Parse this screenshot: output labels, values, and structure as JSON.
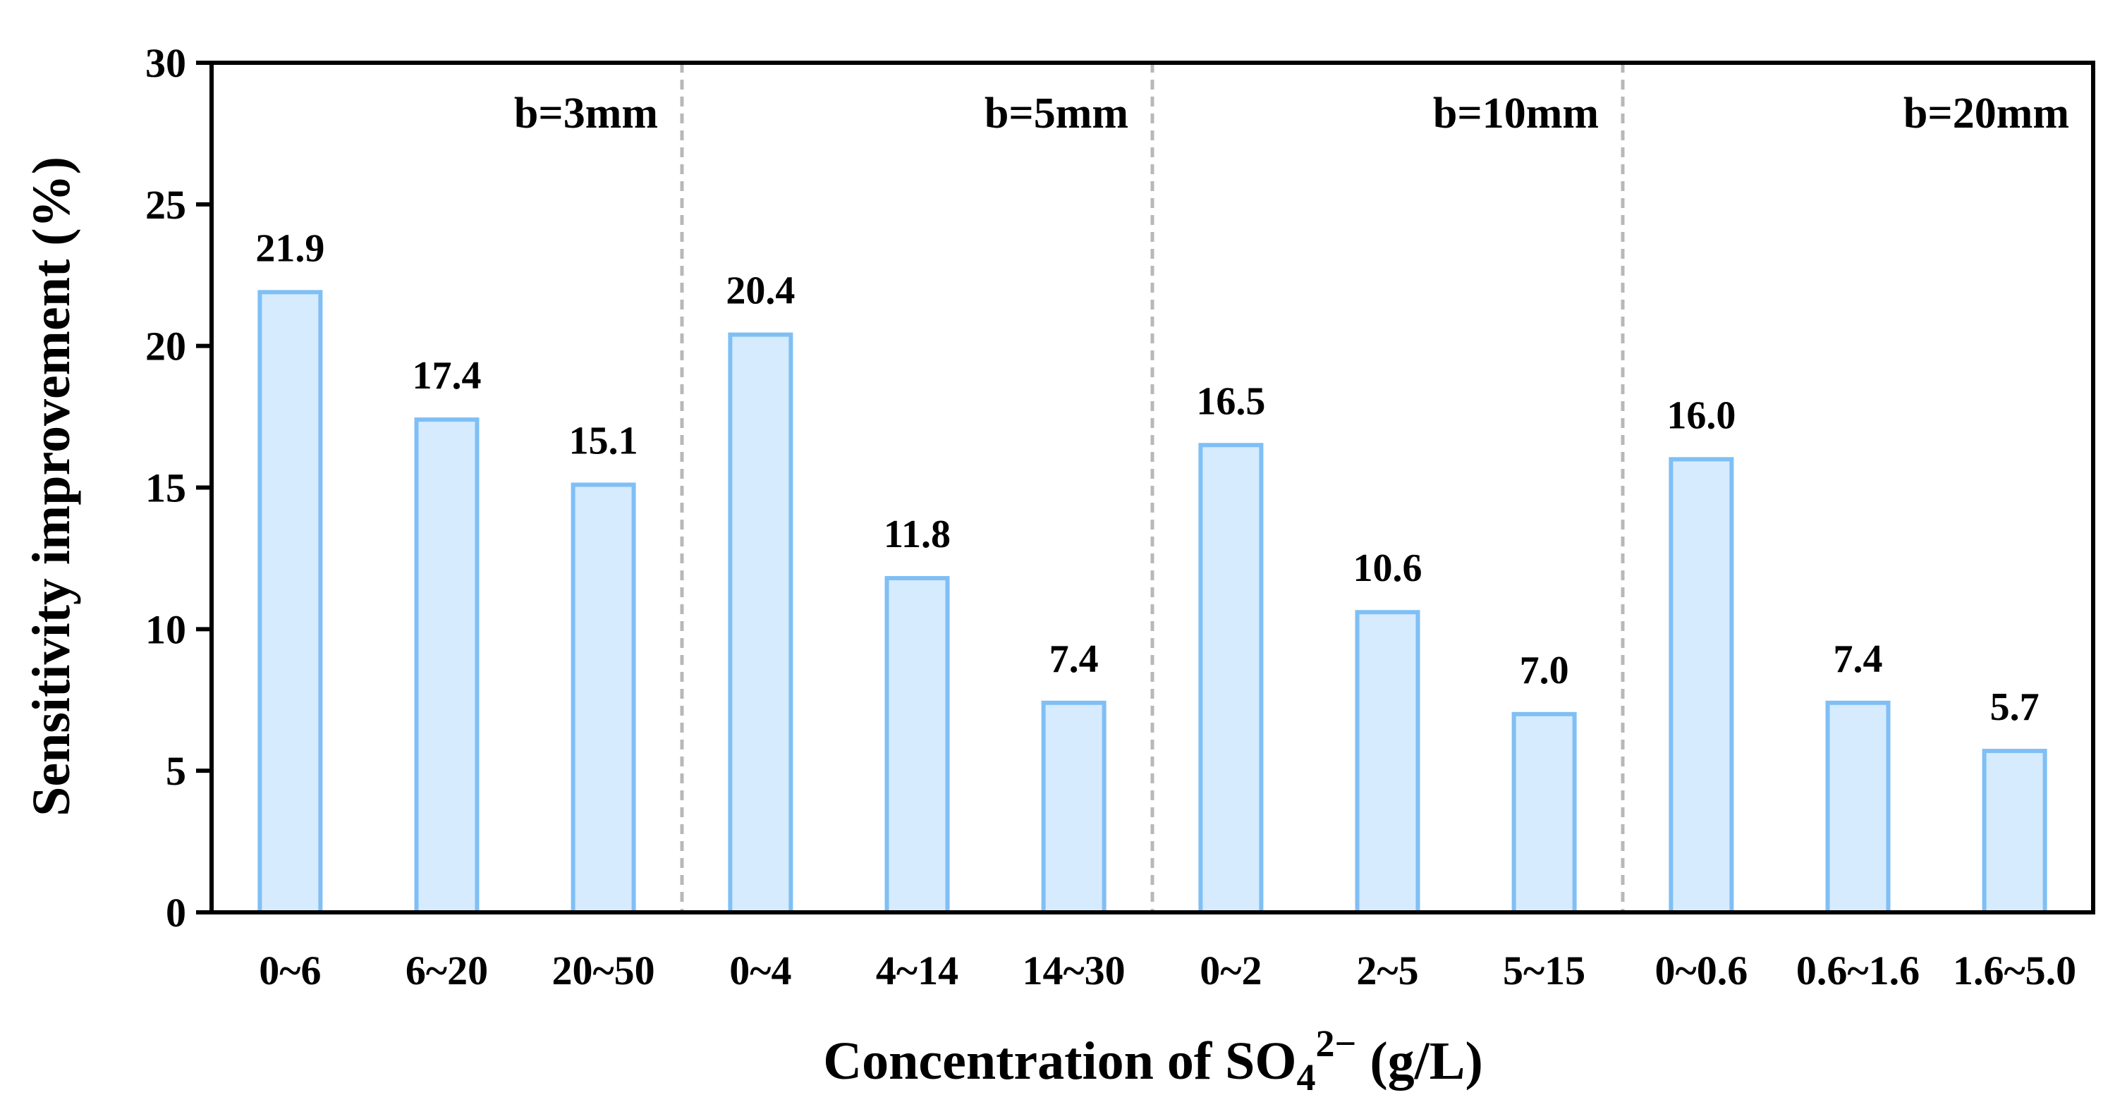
{
  "chart_data": {
    "type": "bar",
    "ylabel": "Sensitivity improvement (%)",
    "xlabel": {
      "prefix": "Concentration of SO",
      "subscript": "4",
      "superscript": "2−",
      "suffix": " (g/L)"
    },
    "ylim": [
      0,
      30
    ],
    "yticks": [
      "0",
      "5",
      "10",
      "15",
      "20",
      "25",
      "30"
    ],
    "grid": false,
    "colors": {
      "bar_fill": "#d6ebfd",
      "bar_stroke": "#7fbff5",
      "divider": "#b8b8b8",
      "axis": "#000000"
    },
    "groups": [
      {
        "label": "b=3mm",
        "categories": [
          "0~6",
          "6~20",
          "20~50"
        ],
        "values": [
          21.9,
          17.4,
          15.1
        ],
        "value_labels": [
          "21.9",
          "17.4",
          "15.1"
        ]
      },
      {
        "label": "b=5mm",
        "categories": [
          "0~4",
          "4~14",
          "14~30"
        ],
        "values": [
          20.4,
          11.8,
          7.4
        ],
        "value_labels": [
          "20.4",
          "11.8",
          "7.4"
        ]
      },
      {
        "label": "b=10mm",
        "categories": [
          "0~2",
          "2~5",
          "5~15"
        ],
        "values": [
          16.5,
          10.6,
          7.0
        ],
        "value_labels": [
          "16.5",
          "10.6",
          "7.0"
        ]
      },
      {
        "label": "b=20mm",
        "categories": [
          "0~0.6",
          "0.6~1.6",
          "1.6~5.0"
        ],
        "values": [
          16.0,
          7.4,
          5.7
        ],
        "value_labels": [
          "16.0",
          "7.4",
          "5.7"
        ]
      }
    ]
  }
}
